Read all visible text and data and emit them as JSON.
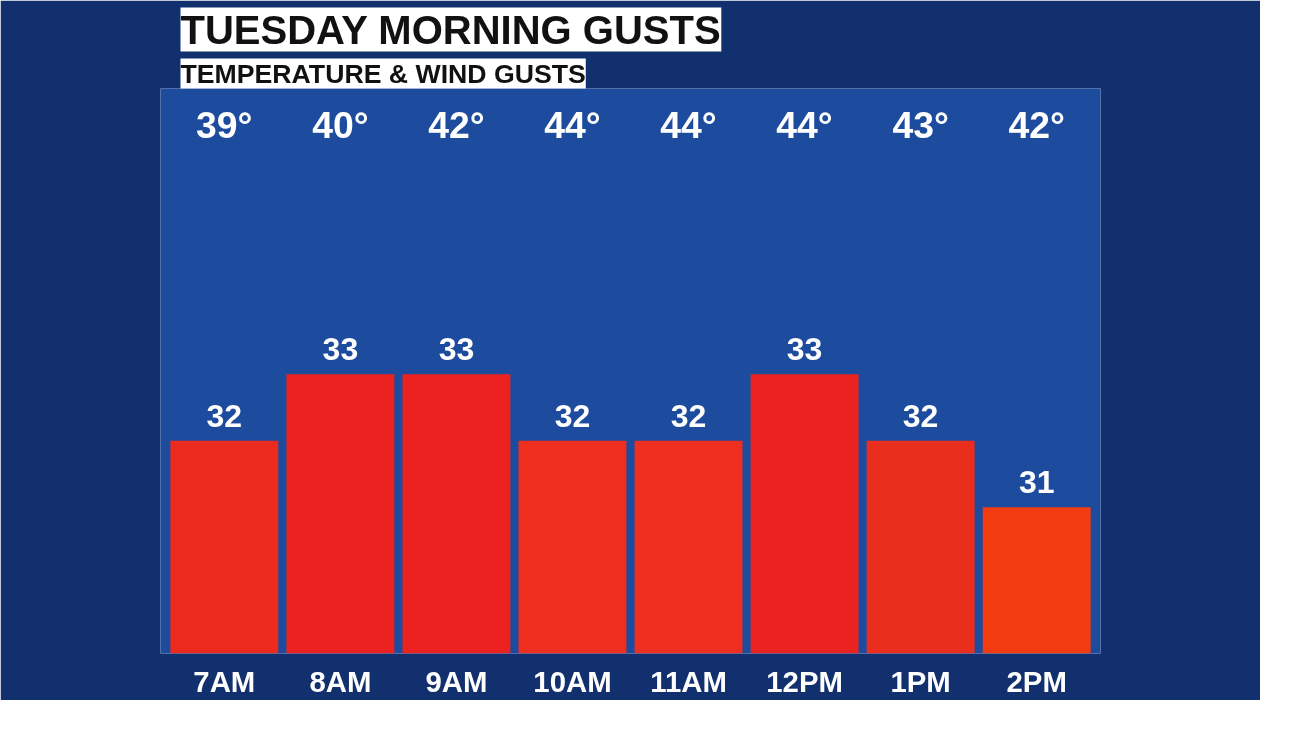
{
  "chart_data": {
    "type": "bar",
    "title": "TUESDAY MORNING GUSTS",
    "subtitle": "TEMPERATURE & WIND GUSTS",
    "categories": [
      "7AM",
      "8AM",
      "9AM",
      "10AM",
      "11AM",
      "12PM",
      "1PM",
      "2PM"
    ],
    "values": [
      32,
      33,
      33,
      32,
      32,
      33,
      32,
      31
    ],
    "colors": [
      "#ec2a1e",
      "#ec2220",
      "#ec2220",
      "#ee2e1e",
      "#ee2e1e",
      "#ea2220",
      "#ea2e1e",
      "#f43c12"
    ],
    "ylim": [
      28.8,
      37.3
    ],
    "data_labels": true,
    "tick_labels": "x",
    "grid": false,
    "annotations": [
      "39°",
      "40°",
      "42°",
      "44°",
      "44°",
      "44°",
      "43°",
      "42°"
    ]
  }
}
